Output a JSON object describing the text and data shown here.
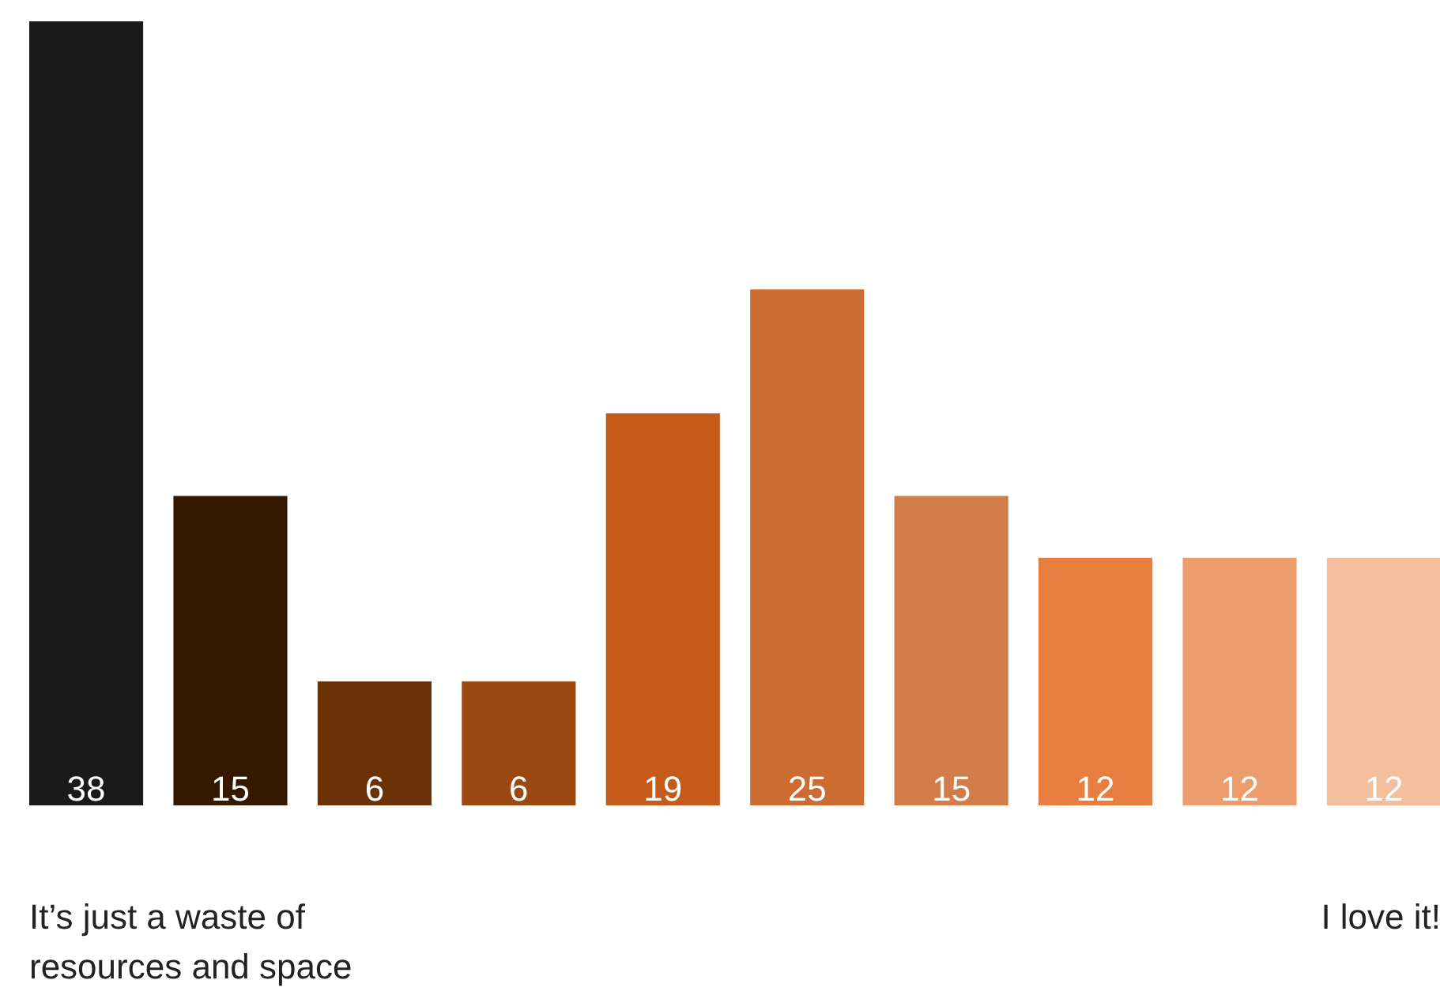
{
  "chart_data": {
    "type": "bar",
    "categories": [
      null,
      null,
      null,
      null,
      null,
      null,
      null,
      null,
      null,
      null
    ],
    "values": [
      38,
      15,
      6,
      6,
      19,
      25,
      15,
      12,
      12,
      12
    ],
    "colors": [
      "#1a1a1a",
      "#351800",
      "#6a3206",
      "#9b4812",
      "#c65a1b",
      "#cc6c30",
      "#d27c4a",
      "#e77d3e",
      "#eb9d6e",
      "#f3be9c"
    ],
    "data_labels": true,
    "grid": false,
    "tick_labels": false,
    "annotations": [
      "It’s just a waste of resources and space",
      "I love it!"
    ]
  }
}
